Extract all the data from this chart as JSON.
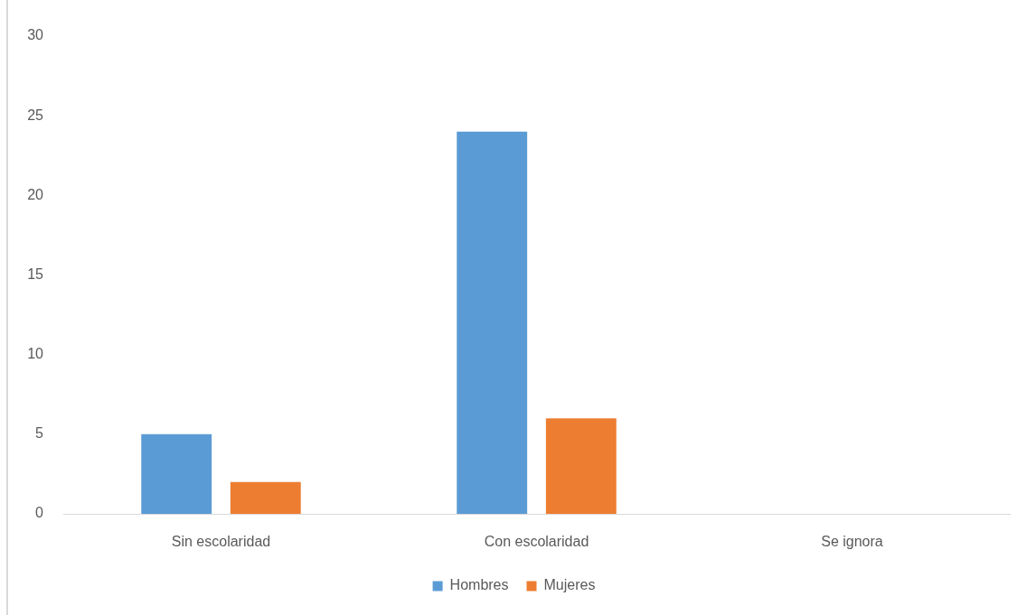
{
  "chart_data": {
    "type": "bar",
    "categories": [
      "Sin escolaridad",
      "Con escolaridad",
      "Se ignora"
    ],
    "series": [
      {
        "name": "Hombres",
        "color": "#5b9bd5",
        "values": [
          5,
          24,
          0
        ]
      },
      {
        "name": "Mujeres",
        "color": "#ed7d31",
        "values": [
          2,
          6,
          0
        ]
      }
    ],
    "ylim": [
      0,
      30
    ],
    "yticks": [
      0,
      5,
      10,
      15,
      20,
      25,
      30
    ],
    "legend": "bottom"
  }
}
